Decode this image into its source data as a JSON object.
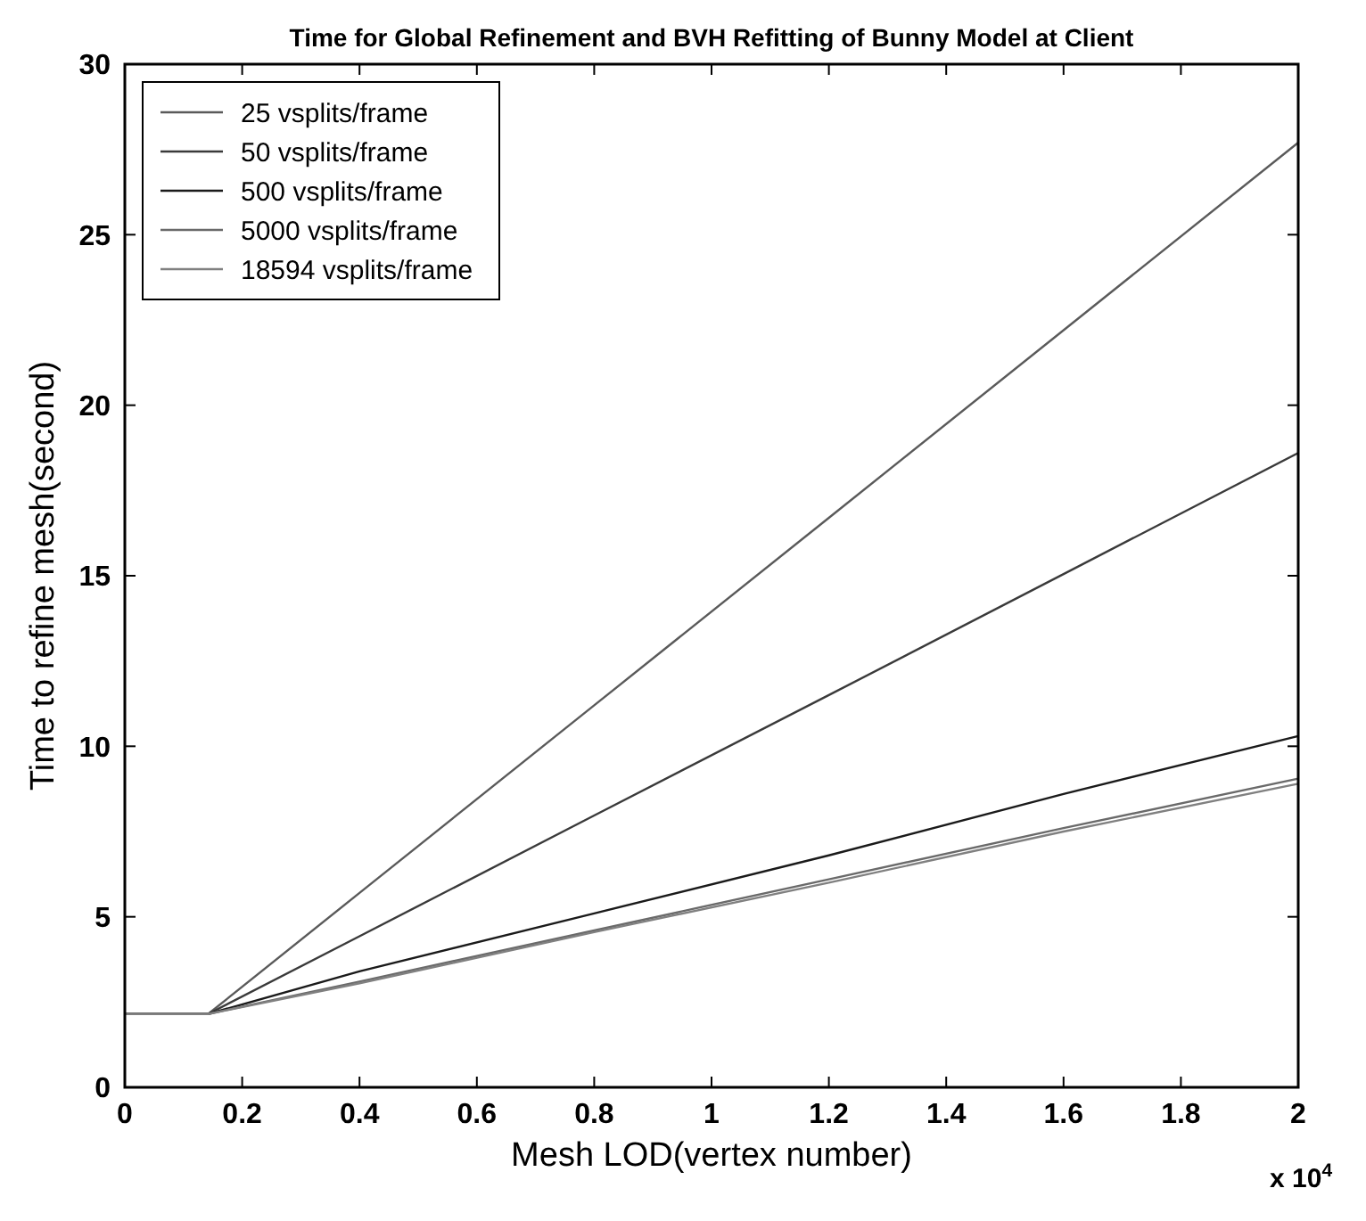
{
  "chart_data": {
    "type": "line",
    "title": "Time for Global Refinement and BVH Refitting of Bunny Model at Client",
    "xlabel": "Mesh LOD(vertex number)",
    "ylabel": "Time to refine mesh(second)",
    "annotations": [
      "x 10$^{4}$"
    ],
    "x": [
      0,
      0.142,
      0.4,
      0.8,
      1.2,
      1.6,
      2
    ],
    "series": [
      {
        "name": "25 vsplits/frame",
        "color": "#5a5a5a",
        "values": [
          2.15,
          2.15,
          5.7,
          11.2,
          16.7,
          22.2,
          27.7
        ]
      },
      {
        "name": "50 vsplits/frame",
        "color": "#3a3a3a",
        "values": [
          2.15,
          2.15,
          4.43,
          7.97,
          11.5,
          15.05,
          18.6
        ]
      },
      {
        "name": "500 vsplits/frame",
        "color": "#1a1a1a",
        "values": [
          2.15,
          2.15,
          3.4,
          5.1,
          6.8,
          8.6,
          10.3
        ]
      },
      {
        "name": "5000 vsplits/frame",
        "color": "#6a6a6a",
        "values": [
          2.15,
          2.15,
          3.1,
          4.6,
          6.1,
          7.6,
          9.05
        ]
      },
      {
        "name": "18594 vsplits/frame",
        "color": "#808080",
        "values": [
          2.15,
          2.15,
          3.05,
          4.55,
          6.0,
          7.5,
          8.9
        ]
      }
    ],
    "xlim": [
      0,
      2
    ],
    "xticks": [
      0,
      0.2,
      0.4,
      0.6,
      0.8,
      1,
      1.2,
      1.4,
      1.6,
      1.8,
      2
    ],
    "ylim": [
      0,
      30
    ],
    "yticks": [
      0,
      5,
      10,
      15,
      20,
      25,
      30
    ],
    "grid": false,
    "legend": "top left",
    "marker": "none",
    "line_style": "solid"
  }
}
